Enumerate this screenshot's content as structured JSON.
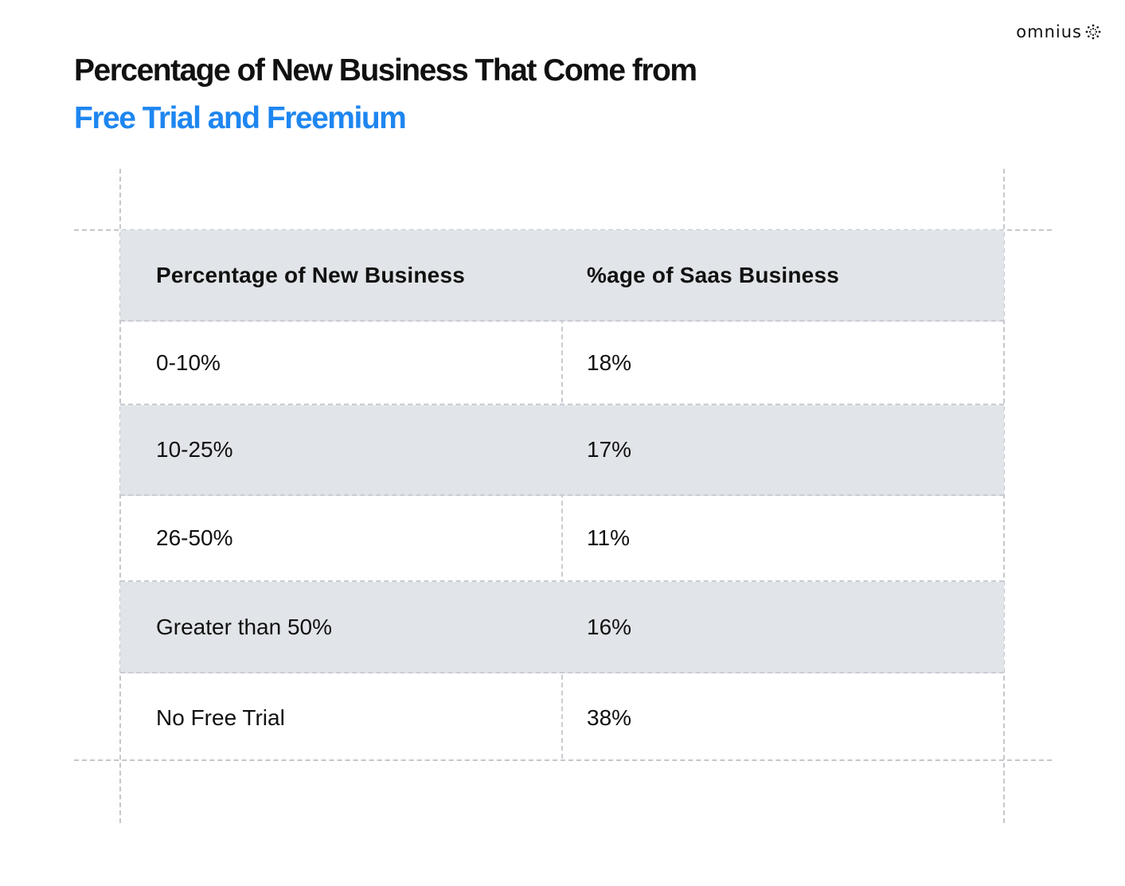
{
  "brand": {
    "name": "omnius",
    "logo_icon": "dotted-sunburst-icon"
  },
  "title": {
    "line1": "Percentage of New Business That Come from",
    "line2": "Free Trial and Freemium",
    "line2_color": "#1e86f0"
  },
  "chart_data": {
    "type": "table",
    "columns": [
      "Percentage of New Business",
      "%age of Saas Business"
    ],
    "rows": [
      [
        "0-10%",
        "18%"
      ],
      [
        "10-25%",
        "17%"
      ],
      [
        "26-50%",
        "11%"
      ],
      [
        "Greater than 50%",
        "16%"
      ],
      [
        "No Free Trial",
        "38%"
      ]
    ],
    "header_background": "#e1e4e8",
    "shaded_rows": [
      1,
      3
    ]
  }
}
